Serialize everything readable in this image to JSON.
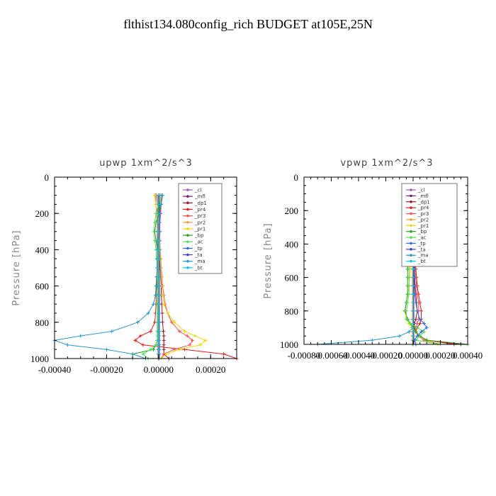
{
  "title": "flthist134.080config_rich  BUDGET at105E,25N",
  "colors": {
    "_cl": "#9b59b6",
    "_mfl": "#7d1a7d",
    "_dp1": "#a0142a",
    "_pr4": "#e11b1b",
    "_pr3": "#ff4d4d",
    "_pr2": "#ff9c2a",
    "_pr1": "#f2d600",
    "_bp": "#21a321",
    "_ac": "#55dd55",
    "_tp": "#2a6df4",
    "_ta": "#3f3fcf",
    "_ma": "#2299cc",
    "_bt": "#00ccee"
  },
  "legend_entries": [
    "_cl",
    "_mfl",
    "_dp1",
    "_pr4",
    "_pr3",
    "_pr2",
    "_pr1",
    "_bp",
    "_ac",
    "_tp",
    "_ta",
    "_ma",
    "_bt"
  ],
  "chart_data": [
    {
      "type": "line",
      "title": "upwp   1xm^2/s^3",
      "ylabel": "Pressure [hPa]",
      "xlabel": "",
      "xlim": [
        -0.0004,
        0.0003
      ],
      "ylim": [
        1000,
        0
      ],
      "xticks": [
        -0.0004,
        -0.0002,
        0.0,
        0.0002
      ],
      "xtick_labels": [
        "-0.00040",
        "-0.00020",
        "0.00000",
        "0.00020"
      ],
      "yticks": [
        0,
        200,
        400,
        600,
        800,
        1000
      ],
      "ytick_labels": [
        "0",
        "200",
        "400",
        "600",
        "800",
        "1000"
      ],
      "legend": "top-right",
      "pressure": [
        100,
        150,
        200,
        250,
        300,
        350,
        400,
        450,
        500,
        550,
        600,
        650,
        700,
        750,
        800,
        850,
        875,
        900,
        925,
        950,
        975,
        1000
      ],
      "series": [
        {
          "name": "_cl",
          "values": [
            0,
            0,
            0,
            0,
            0,
            0,
            0,
            0,
            0,
            0,
            0,
            0,
            0,
            0,
            0,
            0,
            0,
            0,
            0,
            0,
            0,
            0
          ]
        },
        {
          "name": "_mfl",
          "values": [
            0,
            0,
            0,
            0,
            0,
            0,
            0,
            0,
            0,
            0,
            0,
            0,
            0,
            0,
            0,
            0,
            0,
            0,
            0,
            0,
            0,
            0
          ]
        },
        {
          "name": "_dp1",
          "values": [
            5e-06,
            5e-06,
            5e-06,
            4e-06,
            4e-06,
            4e-06,
            5e-06,
            5e-06,
            6e-06,
            8e-06,
            1e-05,
            1e-05,
            1.2e-05,
            1.4e-05,
            1.5e-05,
            1.8e-05,
            2e-05,
            2e-05,
            2e-05,
            2e-05,
            2e-05,
            4e-05
          ]
        },
        {
          "name": "_pr4",
          "values": [
            -1e-05,
            -1e-05,
            -8e-06,
            -5e-06,
            -5e-06,
            -5e-06,
            -5e-06,
            -5e-06,
            -6e-06,
            -6e-06,
            -8e-06,
            -1e-05,
            -1e-05,
            -1.2e-05,
            -1.5e-05,
            -3e-05,
            -7e-05,
            -9e-05,
            -6e-05,
            0.0001,
            0.00025,
            0.0003
          ]
        },
        {
          "name": "_pr3",
          "values": [
            1e-05,
            1e-05,
            8e-06,
            5e-06,
            5e-06,
            5e-06,
            6e-06,
            8e-06,
            1e-05,
            1.2e-05,
            1.5e-05,
            2e-05,
            2.5e-05,
            3.5e-05,
            5e-05,
            8e-05,
            0.00011,
            0.00013,
            0.00012,
            6e-05,
            2e-05,
            1e-05
          ]
        },
        {
          "name": "_pr2",
          "values": [
            -1.5e-05,
            -1e-05,
            -8e-06,
            -5e-06,
            -4e-06,
            -3e-06,
            -2e-06,
            -2e-06,
            -2e-06,
            -2e-06,
            -2e-06,
            -2e-06,
            -2e-06,
            -2e-06,
            -2e-06,
            -2e-06,
            -2e-06,
            -2e-06,
            -2e-06,
            -2e-06,
            -2e-06,
            -2e-06
          ]
        },
        {
          "name": "_pr1",
          "values": [
            -1.5e-05,
            -1e-05,
            -5e-06,
            0,
            2e-06,
            4e-06,
            5e-06,
            6e-06,
            8e-06,
            1e-05,
            1.2e-05,
            1.5e-05,
            2e-05,
            3.5e-05,
            6e-05,
            0.0001,
            0.00014,
            0.00018,
            0.00016,
            8e-05,
            3e-05,
            1e-05
          ]
        },
        {
          "name": "_bp",
          "values": [
            5e-06,
            5e-06,
            0,
            -1e-05,
            -1.5e-05,
            -1e-05,
            -5e-06,
            -5e-06,
            -5e-06,
            -5e-06,
            -5e-06,
            -5e-06,
            -5e-06,
            -5e-06,
            -5e-06,
            -5e-06,
            -5e-06,
            -5e-06,
            -1e-05,
            -2e-05,
            -0.0001,
            -0.0001
          ]
        },
        {
          "name": "_ac",
          "values": [
            5e-06,
            0,
            -1e-05,
            -1.5e-05,
            -1.8e-05,
            -1.5e-05,
            -1e-05,
            -8e-06,
            -6e-06,
            -5e-06,
            -4e-06,
            -4e-06,
            -4e-06,
            -4e-06,
            -4e-06,
            -4e-06,
            -4e-06,
            -4e-06,
            -1e-05,
            -3e-05,
            -6e-05,
            -4e-05
          ]
        },
        {
          "name": "_tp",
          "values": [
            1.5e-05,
            1e-05,
            5e-06,
            3e-06,
            2e-06,
            2e-06,
            2e-06,
            2e-06,
            2e-06,
            2e-06,
            2e-06,
            2e-06,
            2e-06,
            2e-06,
            2e-06,
            2e-06,
            2e-06,
            2e-06,
            2e-06,
            2e-06,
            2e-06,
            2e-06
          ]
        },
        {
          "name": "_ta",
          "values": [
            0,
            0,
            0,
            0,
            0,
            0,
            0,
            0,
            0,
            0,
            0,
            0,
            0,
            0,
            0,
            0,
            0,
            0,
            0,
            0,
            0,
            0
          ]
        },
        {
          "name": "_ma",
          "values": [
            1.5e-05,
            1e-05,
            5e-06,
            0,
            -2e-06,
            -3e-06,
            -4e-06,
            -5e-06,
            -6e-06,
            -8e-06,
            -1e-05,
            -1.2e-05,
            -2e-05,
            -4e-05,
            -8e-05,
            -0.00018,
            -0.0003,
            -0.0004,
            -0.00035,
            -0.0002,
            -0.0001,
            -5e-05
          ]
        },
        {
          "name": "_bt",
          "values": [
            0,
            0,
            0,
            0,
            0,
            0,
            0,
            0,
            0,
            0,
            0,
            0,
            0,
            0,
            0,
            0,
            0,
            0,
            0,
            0,
            0,
            0
          ]
        }
      ]
    },
    {
      "type": "line",
      "title": "vpwp   1xm^2/s^3",
      "ylabel": "Pressure [hPa]",
      "xlabel": "",
      "xlim": [
        -0.0008,
        0.0004
      ],
      "ylim": [
        1000,
        0
      ],
      "xticks": [
        -0.0008,
        -0.0006,
        -0.0004,
        -0.0002,
        0.0,
        0.0002,
        0.0004
      ],
      "xtick_labels": [
        "-0.00080",
        "-0.00060",
        "-0.00040",
        "-0.00020",
        "0.00000",
        "0.00020",
        "0.00040"
      ],
      "yticks": [
        0,
        200,
        400,
        600,
        800,
        1000
      ],
      "ytick_labels": [
        "0",
        "200",
        "400",
        "600",
        "800",
        "1000"
      ],
      "legend": "top-right",
      "pressure": [
        100,
        150,
        200,
        250,
        300,
        350,
        400,
        450,
        500,
        550,
        600,
        650,
        700,
        750,
        800,
        850,
        875,
        900,
        925,
        950,
        975,
        1000
      ],
      "series": [
        {
          "name": "_cl",
          "values": [
            0,
            0,
            0,
            0,
            0,
            0,
            0,
            0,
            0,
            0,
            0,
            0,
            0,
            0,
            0,
            0,
            0,
            0,
            0,
            0,
            0,
            0
          ]
        },
        {
          "name": "_mfl",
          "values": [
            0,
            0,
            0,
            0,
            0,
            0,
            0,
            0,
            0,
            0,
            0,
            0,
            0,
            0,
            0,
            0,
            0,
            0,
            0,
            0,
            0,
            0
          ]
        },
        {
          "name": "_dp1",
          "values": [
            5e-06,
            5e-06,
            5e-06,
            5e-06,
            5e-06,
            5e-06,
            5e-06,
            6e-06,
            8e-06,
            1e-05,
            1.2e-05,
            1.5e-05,
            2e-05,
            2.5e-05,
            3e-05,
            2e-05,
            1e-05,
            1e-05,
            2e-05,
            5e-05,
            0.0001,
            0.00035
          ]
        },
        {
          "name": "_pr4",
          "values": [
            5e-06,
            5e-06,
            8e-06,
            1e-05,
            1e-05,
            1e-05,
            1e-05,
            1.2e-05,
            1.5e-05,
            2e-05,
            2.5e-05,
            3e-05,
            4e-05,
            5e-05,
            6e-05,
            6e-05,
            5e-05,
            3e-05,
            2e-05,
            5e-05,
            0.0001,
            0.0003
          ]
        },
        {
          "name": "_pr3",
          "values": [
            5e-06,
            5e-06,
            5e-06,
            8e-06,
            1e-05,
            1e-05,
            1e-05,
            1e-05,
            1.2e-05,
            1.5e-05,
            2e-05,
            2.5e-05,
            3e-05,
            4e-05,
            4e-05,
            4e-05,
            3e-05,
            2e-05,
            2e-05,
            4e-05,
            8e-05,
            0.0002
          ]
        },
        {
          "name": "_pr2",
          "values": [
            -5e-06,
            -5e-06,
            -5e-06,
            -5e-06,
            -5e-06,
            -5e-06,
            -5e-06,
            -5e-06,
            -5e-06,
            -5e-06,
            -5e-06,
            -5e-06,
            -5e-06,
            -5e-06,
            -5e-06,
            -5e-06,
            -5e-06,
            -5e-06,
            -5e-06,
            -5e-06,
            -5e-06,
            -5e-06
          ]
        },
        {
          "name": "_pr1",
          "values": [
            -5e-06,
            -1e-05,
            -1.5e-05,
            -2e-05,
            -2e-05,
            -2e-05,
            -2e-05,
            -2e-05,
            -2e-05,
            -2e-05,
            -2.5e-05,
            -3e-05,
            -4e-05,
            -5e-05,
            -6e-05,
            -5e-05,
            -3e-05,
            -1e-05,
            2e-05,
            5e-05,
            0.0001,
            0.00018
          ]
        },
        {
          "name": "_bp",
          "values": [
            -1e-05,
            -3e-05,
            -4e-05,
            -4e-05,
            -4e-05,
            -4e-05,
            -4e-05,
            -4e-05,
            -4e-05,
            -4e-05,
            -4e-05,
            -4e-05,
            -4e-05,
            -5e-05,
            -6e-05,
            -4e-05,
            -2e-05,
            0,
            2e-05,
            5e-05,
            0.0001,
            0.0004
          ]
        },
        {
          "name": "_ac",
          "values": [
            -1e-05,
            -3e-05,
            -5e-05,
            -5e-05,
            -4e-05,
            -3e-05,
            -3e-05,
            -3e-05,
            -3e-05,
            -3e-05,
            -3e-05,
            -3e-05,
            -3e-05,
            -4e-05,
            -5e-05,
            -5e-05,
            -2e-05,
            3e-05,
            8e-05,
            5e-05,
            2e-05,
            0.0002
          ]
        },
        {
          "name": "_tp",
          "values": [
            5e-06,
            5e-06,
            5e-06,
            8e-06,
            1e-05,
            1e-05,
            1e-05,
            1e-05,
            1e-05,
            1e-05,
            1e-05,
            1e-05,
            1.2e-05,
            2e-05,
            3e-05,
            5e-05,
            8e-05,
            0.0001,
            6e-05,
            3e-05,
            1e-05,
            2e-05
          ]
        },
        {
          "name": "_ta",
          "values": [
            0,
            0,
            0,
            0,
            0,
            0,
            0,
            0,
            0,
            0,
            0,
            0,
            0,
            0,
            0,
            0,
            0,
            0,
            0,
            0,
            0,
            0
          ]
        },
        {
          "name": "_ma",
          "values": [
            0,
            0,
            0,
            0,
            0,
            0,
            0,
            0,
            0,
            0,
            0,
            0,
            0,
            0,
            0,
            0,
            0,
            0,
            -3e-05,
            -0.0001,
            -0.0003,
            -0.0007
          ]
        },
        {
          "name": "_bt",
          "values": [
            0,
            0,
            0,
            0,
            0,
            0,
            0,
            0,
            0,
            0,
            0,
            0,
            0,
            0,
            0,
            0,
            0,
            0,
            0,
            0,
            0,
            0
          ]
        }
      ]
    }
  ]
}
